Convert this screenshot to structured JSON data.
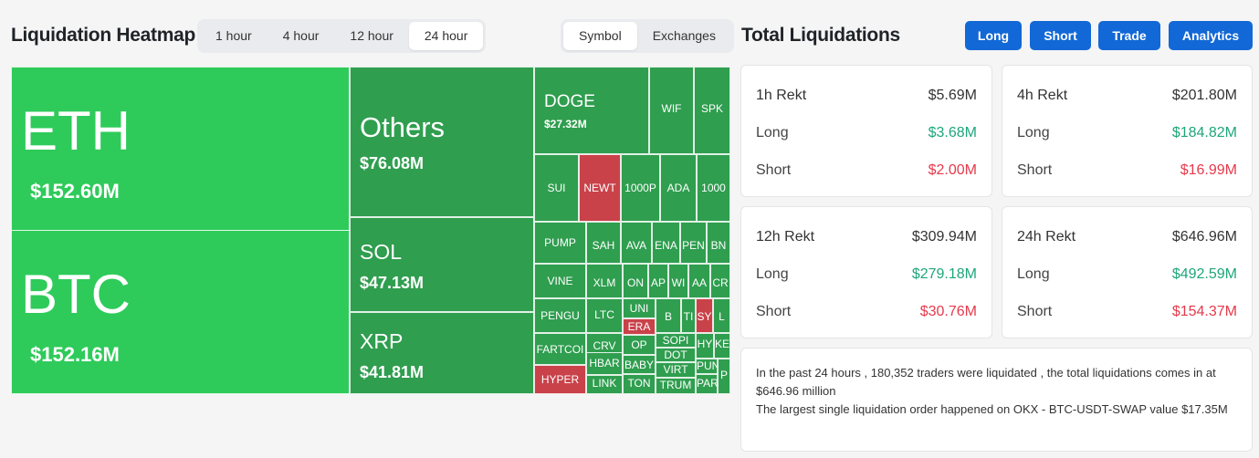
{
  "heatmap": {
    "title": "Liquidation Heatmap",
    "time_options": [
      "1 hour",
      "4 hour",
      "12 hour",
      "24 hour"
    ],
    "time_active": "24 hour",
    "view_options": [
      "Symbol",
      "Exchanges"
    ],
    "view_active": "Symbol"
  },
  "tiles": [
    {
      "symbol": "ETH",
      "amount": "$152.60M"
    },
    {
      "symbol": "BTC",
      "amount": "$152.16M"
    },
    {
      "symbol": "Others",
      "amount": "$76.08M"
    },
    {
      "symbol": "SOL",
      "amount": "$47.13M"
    },
    {
      "symbol": "XRP",
      "amount": "$41.81M"
    },
    {
      "symbol": "DOGE",
      "amount": "$27.32M"
    },
    {
      "symbol": "WIF",
      "amount": ""
    },
    {
      "symbol": "SPK",
      "amount": ""
    },
    {
      "symbol": "SUI",
      "amount": ""
    },
    {
      "symbol": "NEWT",
      "amount": ""
    },
    {
      "symbol": "1000P",
      "amount": ""
    },
    {
      "symbol": "ADA",
      "amount": ""
    },
    {
      "symbol": "1000",
      "amount": ""
    },
    {
      "symbol": "PUMP",
      "amount": ""
    },
    {
      "symbol": "SAH",
      "amount": ""
    },
    {
      "symbol": "AVA",
      "amount": ""
    },
    {
      "symbol": "ENA",
      "amount": ""
    },
    {
      "symbol": "PEN",
      "amount": ""
    },
    {
      "symbol": "BN",
      "amount": ""
    },
    {
      "symbol": "VINE",
      "amount": ""
    },
    {
      "symbol": "XLM",
      "amount": ""
    },
    {
      "symbol": "ON",
      "amount": ""
    },
    {
      "symbol": "AP",
      "amount": ""
    },
    {
      "symbol": "WI",
      "amount": ""
    },
    {
      "symbol": "AA",
      "amount": ""
    },
    {
      "symbol": "CR",
      "amount": ""
    },
    {
      "symbol": "PENGU",
      "amount": ""
    },
    {
      "symbol": "LTC",
      "amount": ""
    },
    {
      "symbol": "UNI",
      "amount": ""
    },
    {
      "symbol": "ERA",
      "amount": ""
    },
    {
      "symbol": "B",
      "amount": ""
    },
    {
      "symbol": "TI",
      "amount": ""
    },
    {
      "symbol": "SY",
      "amount": ""
    },
    {
      "symbol": "L",
      "amount": ""
    },
    {
      "symbol": "FARTCOI",
      "amount": ""
    },
    {
      "symbol": "CRV",
      "amount": ""
    },
    {
      "symbol": "OP",
      "amount": ""
    },
    {
      "symbol": "SOPI",
      "amount": ""
    },
    {
      "symbol": "DOT",
      "amount": ""
    },
    {
      "symbol": "HY",
      "amount": ""
    },
    {
      "symbol": "KE",
      "amount": ""
    },
    {
      "symbol": "HYPER",
      "amount": ""
    },
    {
      "symbol": "HBAR",
      "amount": ""
    },
    {
      "symbol": "BABY",
      "amount": ""
    },
    {
      "symbol": "VIRT",
      "amount": ""
    },
    {
      "symbol": "PUN",
      "amount": ""
    },
    {
      "symbol": "LINK",
      "amount": ""
    },
    {
      "symbol": "TON",
      "amount": ""
    },
    {
      "symbol": "TRUM",
      "amount": ""
    },
    {
      "symbol": "PAR",
      "amount": ""
    },
    {
      "symbol": "P",
      "amount": ""
    }
  ],
  "totals": {
    "title": "Total Liquidations",
    "buttons": [
      "Long",
      "Short",
      "Trade",
      "Analytics"
    ],
    "cards": [
      {
        "label": "1h Rekt",
        "total": "$5.69M",
        "long_label": "Long",
        "long": "$3.68M",
        "short_label": "Short",
        "short": "$2.00M"
      },
      {
        "label": "4h Rekt",
        "total": "$201.80M",
        "long_label": "Long",
        "long": "$184.82M",
        "short_label": "Short",
        "short": "$16.99M"
      },
      {
        "label": "12h Rekt",
        "total": "$309.94M",
        "long_label": "Long",
        "long": "$279.18M",
        "short_label": "Short",
        "short": "$30.76M"
      },
      {
        "label": "24h Rekt",
        "total": "$646.96M",
        "long_label": "Long",
        "long": "$492.59M",
        "short_label": "Short",
        "short": "$154.37M"
      }
    ],
    "summary_line1": "In the past 24 hours , 180,352 traders were liquidated , the total liquidations comes in at $646.96 million",
    "summary_line2": "The largest single liquidation order happened on OKX - BTC-USDT-SWAP value $17.35M"
  }
}
